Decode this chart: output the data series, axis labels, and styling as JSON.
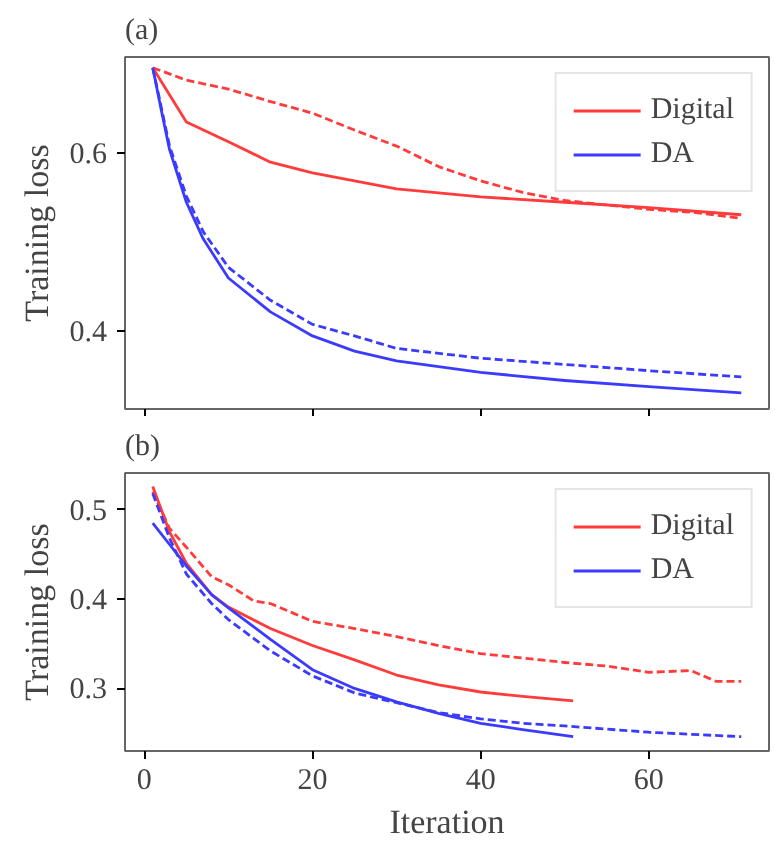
{
  "chart_data": [
    {
      "type": "line",
      "title": "(a)",
      "ylabel": "Training loss",
      "xlim": [
        -2.3,
        74.3
      ],
      "xticks": [
        {
          "value": 0,
          "label": null
        },
        {
          "value": 20,
          "label": null
        },
        {
          "value": 40,
          "label": null
        },
        {
          "value": 60,
          "label": null
        }
      ],
      "ylim": [
        0.313,
        0.708
      ],
      "yticks": [
        0.4,
        0.6
      ],
      "tick_labels": "y",
      "grid": false,
      "legend": "top right",
      "series": [
        {
          "name": "Digital",
          "color": "#ff3b3b",
          "line_style": "solid",
          "x": [
            1,
            5,
            10,
            15,
            20,
            25,
            30,
            40,
            50,
            60,
            71
          ],
          "values": [
            0.696,
            0.635,
            0.613,
            0.59,
            0.578,
            0.569,
            0.56,
            0.551,
            0.545,
            0.539,
            0.531
          ]
        },
        {
          "name": "DA",
          "color": "#3b3bff",
          "line_style": "solid",
          "x": [
            1,
            2,
            3,
            5,
            7,
            10,
            15,
            20,
            25,
            30,
            40,
            50,
            60,
            71
          ],
          "values": [
            0.696,
            0.649,
            0.604,
            0.545,
            0.504,
            0.46,
            0.422,
            0.395,
            0.378,
            0.367,
            0.354,
            0.345,
            0.338,
            0.331
          ]
        },
        {
          "color": "#ff3b3b",
          "line_style": "dashed",
          "x": [
            1,
            5,
            10,
            15,
            20,
            25,
            30,
            35,
            40,
            45,
            50,
            55,
            60,
            65,
            71
          ],
          "values": [
            0.696,
            0.682,
            0.672,
            0.658,
            0.645,
            0.626,
            0.608,
            0.585,
            0.569,
            0.556,
            0.547,
            0.542,
            0.537,
            0.534,
            0.527
          ]
        },
        {
          "color": "#3b3bff",
          "line_style": "dashed",
          "x": [
            1,
            2,
            3,
            5,
            7,
            10,
            15,
            20,
            25,
            30,
            40,
            50,
            60,
            71
          ],
          "values": [
            0.696,
            0.652,
            0.608,
            0.552,
            0.512,
            0.472,
            0.435,
            0.408,
            0.395,
            0.381,
            0.37,
            0.363,
            0.356,
            0.349
          ]
        }
      ]
    },
    {
      "type": "line",
      "title": "(b)",
      "xlabel": "Iteration",
      "ylabel": "Training loss",
      "xlim": [
        -2.3,
        74.3
      ],
      "xticks": [
        0,
        20,
        40,
        60
      ],
      "ylim": [
        0.23,
        0.541
      ],
      "yticks": [
        0.3,
        0.4,
        0.5
      ],
      "grid": false,
      "legend": "top right",
      "series": [
        {
          "name": "Digital",
          "color": "#ff3b3b",
          "line_style": "solid",
          "x": [
            1,
            3,
            5,
            8,
            10,
            15,
            20,
            25,
            30,
            35,
            40,
            45,
            51
          ],
          "values": [
            0.526,
            0.475,
            0.44,
            0.405,
            0.391,
            0.367,
            0.348,
            0.332,
            0.315,
            0.304,
            0.296,
            0.291,
            0.286
          ]
        },
        {
          "name": "DA",
          "color": "#3b3bff",
          "line_style": "solid",
          "x": [
            1,
            3,
            5,
            8,
            10,
            15,
            20,
            25,
            30,
            35,
            40,
            45,
            51
          ],
          "values": [
            0.485,
            0.461,
            0.437,
            0.405,
            0.39,
            0.355,
            0.321,
            0.3,
            0.285,
            0.272,
            0.261,
            0.254,
            0.246
          ]
        },
        {
          "color": "#ff3b3b",
          "line_style": "dashed",
          "x": [
            1,
            3,
            5,
            8,
            10,
            13,
            15,
            20,
            25,
            30,
            35,
            40,
            45,
            50,
            55,
            60,
            65,
            68,
            71
          ],
          "values": [
            0.52,
            0.479,
            0.458,
            0.425,
            0.416,
            0.398,
            0.395,
            0.375,
            0.367,
            0.358,
            0.348,
            0.339,
            0.334,
            0.329,
            0.325,
            0.318,
            0.32,
            0.308,
            0.308
          ]
        },
        {
          "color": "#3b3bff",
          "line_style": "dashed",
          "x": [
            1,
            3,
            5,
            8,
            10,
            15,
            20,
            25,
            30,
            35,
            40,
            45,
            50,
            60,
            71
          ],
          "values": [
            0.518,
            0.468,
            0.428,
            0.395,
            0.377,
            0.342,
            0.314,
            0.295,
            0.284,
            0.273,
            0.266,
            0.261,
            0.258,
            0.251,
            0.246
          ]
        }
      ]
    }
  ]
}
